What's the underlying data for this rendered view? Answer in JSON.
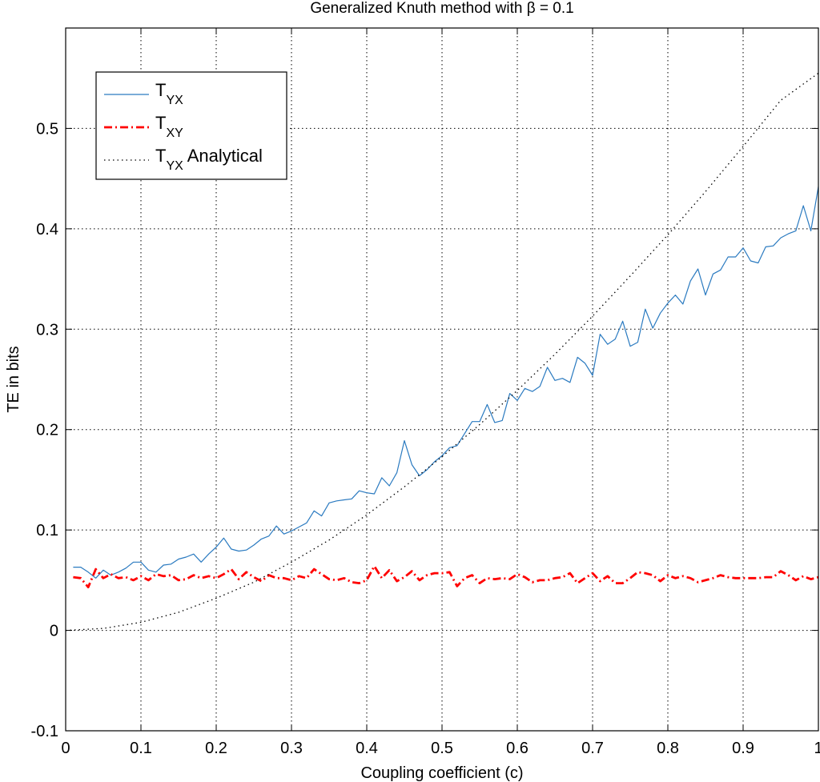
{
  "chart_data": {
    "type": "line",
    "title": "Generalized Knuth method with β = 0.1",
    "xlabel": "Coupling coefficient (c)",
    "ylabel": "TE in bits",
    "xlim": [
      0,
      1
    ],
    "ylim": [
      -0.1,
      0.6
    ],
    "xticks": [
      "0",
      "0.1",
      "0.2",
      "0.3",
      "0.4",
      "0.5",
      "0.6",
      "0.7",
      "0.8",
      "0.9",
      "1"
    ],
    "yticks": [
      "-0.1",
      "0",
      "0.1",
      "0.2",
      "0.3",
      "0.4",
      "0.5"
    ],
    "grid": true,
    "legend_position": "top-left",
    "series": [
      {
        "name": "T_YX",
        "legend_main": "T",
        "legend_sub": "YX",
        "legend_suffix": "",
        "color": "#2a7ac0",
        "style": "solid",
        "x": [
          0.01,
          0.02,
          0.03,
          0.04,
          0.05,
          0.06,
          0.07,
          0.08,
          0.09,
          0.1,
          0.11,
          0.12,
          0.13,
          0.14,
          0.15,
          0.16,
          0.17,
          0.18,
          0.19,
          0.2,
          0.21,
          0.22,
          0.23,
          0.24,
          0.25,
          0.26,
          0.27,
          0.28,
          0.29,
          0.3,
          0.31,
          0.32,
          0.33,
          0.34,
          0.35,
          0.36,
          0.37,
          0.38,
          0.39,
          0.4,
          0.41,
          0.42,
          0.43,
          0.44,
          0.45,
          0.46,
          0.47,
          0.48,
          0.49,
          0.5,
          0.51,
          0.52,
          0.53,
          0.54,
          0.55,
          0.56,
          0.57,
          0.58,
          0.59,
          0.6,
          0.61,
          0.62,
          0.63,
          0.64,
          0.65,
          0.66,
          0.67,
          0.68,
          0.69,
          0.7,
          0.71,
          0.72,
          0.73,
          0.74,
          0.75,
          0.76,
          0.77,
          0.78,
          0.79,
          0.8,
          0.81,
          0.82,
          0.83,
          0.84,
          0.85,
          0.86,
          0.87,
          0.88,
          0.89,
          0.9,
          0.91,
          0.92,
          0.93,
          0.94,
          0.95,
          0.96,
          0.97,
          0.98,
          0.99,
          1.0
        ],
        "y": [
          0.063,
          0.063,
          0.058,
          0.052,
          0.06,
          0.055,
          0.058,
          0.062,
          0.068,
          0.068,
          0.06,
          0.058,
          0.065,
          0.066,
          0.071,
          0.073,
          0.076,
          0.068,
          0.076,
          0.083,
          0.092,
          0.081,
          0.079,
          0.08,
          0.085,
          0.091,
          0.094,
          0.104,
          0.096,
          0.099,
          0.103,
          0.107,
          0.119,
          0.114,
          0.127,
          0.129,
          0.13,
          0.131,
          0.139,
          0.137,
          0.136,
          0.152,
          0.144,
          0.157,
          0.189,
          0.165,
          0.154,
          0.16,
          0.168,
          0.174,
          0.182,
          0.184,
          0.196,
          0.208,
          0.208,
          0.225,
          0.207,
          0.209,
          0.236,
          0.229,
          0.241,
          0.238,
          0.243,
          0.262,
          0.249,
          0.251,
          0.247,
          0.272,
          0.266,
          0.254,
          0.295,
          0.285,
          0.29,
          0.308,
          0.283,
          0.287,
          0.32,
          0.301,
          0.316,
          0.326,
          0.334,
          0.325,
          0.348,
          0.36,
          0.334,
          0.355,
          0.359,
          0.372,
          0.372,
          0.381,
          0.368,
          0.366,
          0.382,
          0.383,
          0.391,
          0.395,
          0.398,
          0.423,
          0.398,
          0.442
        ]
      },
      {
        "name": "T_XY",
        "legend_main": "T",
        "legend_sub": "XY",
        "legend_suffix": "",
        "color": "#ff0000",
        "style": "dashdot",
        "x": [
          0.01,
          0.02,
          0.03,
          0.04,
          0.05,
          0.06,
          0.07,
          0.08,
          0.09,
          0.1,
          0.11,
          0.12,
          0.13,
          0.14,
          0.15,
          0.16,
          0.17,
          0.18,
          0.19,
          0.2,
          0.21,
          0.22,
          0.23,
          0.24,
          0.25,
          0.26,
          0.27,
          0.28,
          0.29,
          0.3,
          0.31,
          0.32,
          0.33,
          0.34,
          0.35,
          0.36,
          0.37,
          0.38,
          0.39,
          0.4,
          0.41,
          0.42,
          0.43,
          0.44,
          0.45,
          0.46,
          0.47,
          0.48,
          0.49,
          0.5,
          0.51,
          0.52,
          0.53,
          0.54,
          0.55,
          0.56,
          0.57,
          0.58,
          0.59,
          0.6,
          0.61,
          0.62,
          0.63,
          0.64,
          0.65,
          0.66,
          0.67,
          0.68,
          0.69,
          0.7,
          0.71,
          0.72,
          0.73,
          0.74,
          0.75,
          0.76,
          0.77,
          0.78,
          0.79,
          0.8,
          0.81,
          0.82,
          0.83,
          0.84,
          0.85,
          0.86,
          0.87,
          0.88,
          0.89,
          0.9,
          0.91,
          0.92,
          0.93,
          0.94,
          0.95,
          0.96,
          0.97,
          0.98,
          0.99,
          1.0
        ],
        "y": [
          0.053,
          0.052,
          0.043,
          0.061,
          0.052,
          0.056,
          0.052,
          0.053,
          0.05,
          0.054,
          0.05,
          0.056,
          0.054,
          0.055,
          0.05,
          0.051,
          0.055,
          0.052,
          0.054,
          0.052,
          0.056,
          0.061,
          0.051,
          0.058,
          0.053,
          0.049,
          0.055,
          0.052,
          0.052,
          0.05,
          0.054,
          0.052,
          0.061,
          0.056,
          0.051,
          0.05,
          0.052,
          0.048,
          0.047,
          0.05,
          0.064,
          0.052,
          0.06,
          0.049,
          0.053,
          0.059,
          0.05,
          0.055,
          0.057,
          0.057,
          0.058,
          0.044,
          0.052,
          0.055,
          0.047,
          0.052,
          0.051,
          0.052,
          0.051,
          0.056,
          0.053,
          0.048,
          0.05,
          0.05,
          0.052,
          0.053,
          0.057,
          0.047,
          0.052,
          0.057,
          0.049,
          0.054,
          0.047,
          0.047,
          0.052,
          0.058,
          0.057,
          0.055,
          0.049,
          0.055,
          0.052,
          0.054,
          0.052,
          0.048,
          0.05,
          0.052,
          0.055,
          0.053,
          0.052,
          0.052,
          0.052,
          0.052,
          0.053,
          0.053,
          0.059,
          0.055,
          0.05,
          0.054,
          0.051,
          0.053
        ]
      },
      {
        "name": "T_YX Analytical",
        "legend_main": "T",
        "legend_sub": "YX",
        "legend_suffix": " Analytical",
        "color": "#000000",
        "style": "dotted",
        "x": [
          0.0,
          0.05,
          0.1,
          0.15,
          0.2,
          0.25,
          0.3,
          0.35,
          0.4,
          0.45,
          0.5,
          0.55,
          0.6,
          0.65,
          0.7,
          0.75,
          0.8,
          0.85,
          0.9,
          0.95,
          1.0
        ],
        "y": [
          0.0,
          0.002,
          0.008,
          0.018,
          0.032,
          0.048,
          0.068,
          0.09,
          0.115,
          0.143,
          0.173,
          0.205,
          0.239,
          0.275,
          0.313,
          0.353,
          0.394,
          0.437,
          0.482,
          0.528,
          0.555
        ]
      }
    ]
  }
}
